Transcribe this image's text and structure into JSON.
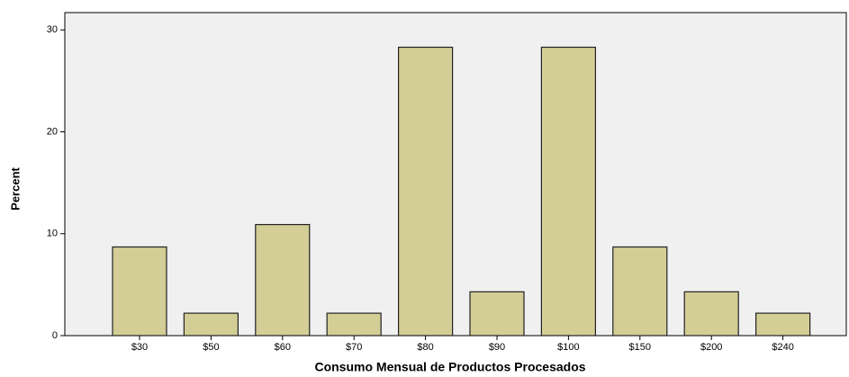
{
  "chart_data": {
    "type": "bar",
    "xlabel": "Consumo Mensual de Productos Procesados",
    "ylabel": "Percent",
    "categories": [
      "$30",
      "$50",
      "$60",
      "$70",
      "$80",
      "$90",
      "$100",
      "$150",
      "$200",
      "$240"
    ],
    "values": [
      8.7,
      2.2,
      10.9,
      2.2,
      28.3,
      4.3,
      28.3,
      8.7,
      4.3,
      2.2
    ],
    "color": "#d3cd96",
    "ylim": [
      0,
      31.7
    ],
    "yticks": [
      0,
      10,
      20,
      30
    ],
    "grid": false
  }
}
